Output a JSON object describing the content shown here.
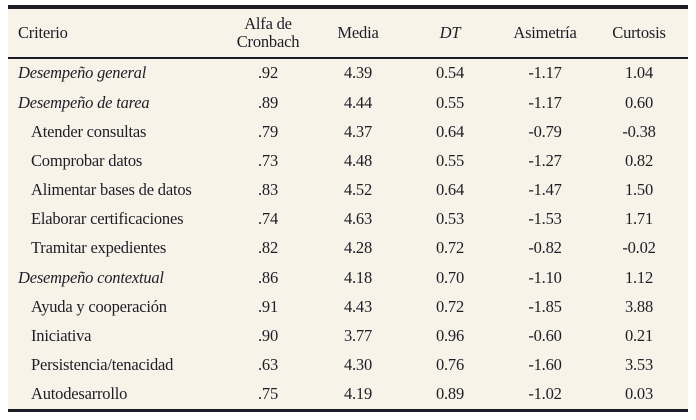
{
  "table": {
    "columns": [
      {
        "label": "Criterio",
        "italic": false
      },
      {
        "label": "Alfa de Cronbach",
        "italic": false
      },
      {
        "label": "Media",
        "italic": false
      },
      {
        "label": "DT",
        "italic": true
      },
      {
        "label": "Asimetría",
        "italic": false
      },
      {
        "label": "Curtosis",
        "italic": false
      }
    ],
    "rows": [
      {
        "criterio": "Desempeño general",
        "style": "section",
        "values": [
          ".92",
          "4.39",
          "0.54",
          "-1.17",
          "1.04"
        ]
      },
      {
        "criterio": "Desempeño de tarea",
        "style": "section",
        "values": [
          ".89",
          "4.44",
          "0.55",
          "-1.17",
          "0.60"
        ]
      },
      {
        "criterio": "Atender consultas",
        "style": "item",
        "values": [
          ".79",
          "4.37",
          "0.64",
          "-0.79",
          "-0.38"
        ]
      },
      {
        "criterio": "Comprobar datos",
        "style": "item",
        "values": [
          ".73",
          "4.48",
          "0.55",
          "-1.27",
          "0.82"
        ]
      },
      {
        "criterio": "Alimentar bases de datos",
        "style": "item",
        "values": [
          ".83",
          "4.52",
          "0.64",
          "-1.47",
          "1.50"
        ]
      },
      {
        "criterio": "Elaborar certificaciones",
        "style": "item",
        "values": [
          ".74",
          "4.63",
          "0.53",
          "-1.53",
          "1.71"
        ]
      },
      {
        "criterio": "Tramitar expedientes",
        "style": "item",
        "values": [
          ".82",
          "4.28",
          "0.72",
          "-0.82",
          "-0.02"
        ]
      },
      {
        "criterio": "Desempeño contextual",
        "style": "section",
        "values": [
          ".86",
          "4.18",
          "0.70",
          "-1.10",
          "1.12"
        ]
      },
      {
        "criterio": "Ayuda y cooperación",
        "style": "item",
        "values": [
          ".91",
          "4.43",
          "0.72",
          "-1.85",
          "3.88"
        ]
      },
      {
        "criterio": "Iniciativa",
        "style": "item",
        "values": [
          ".90",
          "3.77",
          "0.96",
          "-0.60",
          "0.21"
        ]
      },
      {
        "criterio": "Persistencia/tenacidad",
        "style": "item",
        "values": [
          ".63",
          "4.30",
          "0.76",
          "-1.60",
          "3.53"
        ]
      },
      {
        "criterio": "Autodesarrollo",
        "style": "item",
        "values": [
          ".75",
          "4.19",
          "0.89",
          "-1.02",
          "0.03"
        ]
      }
    ],
    "colors": {
      "page_background": "#ffffff",
      "table_background": "#f8f3e8",
      "text": "#1d1d27",
      "border": "#1c1c26"
    }
  }
}
